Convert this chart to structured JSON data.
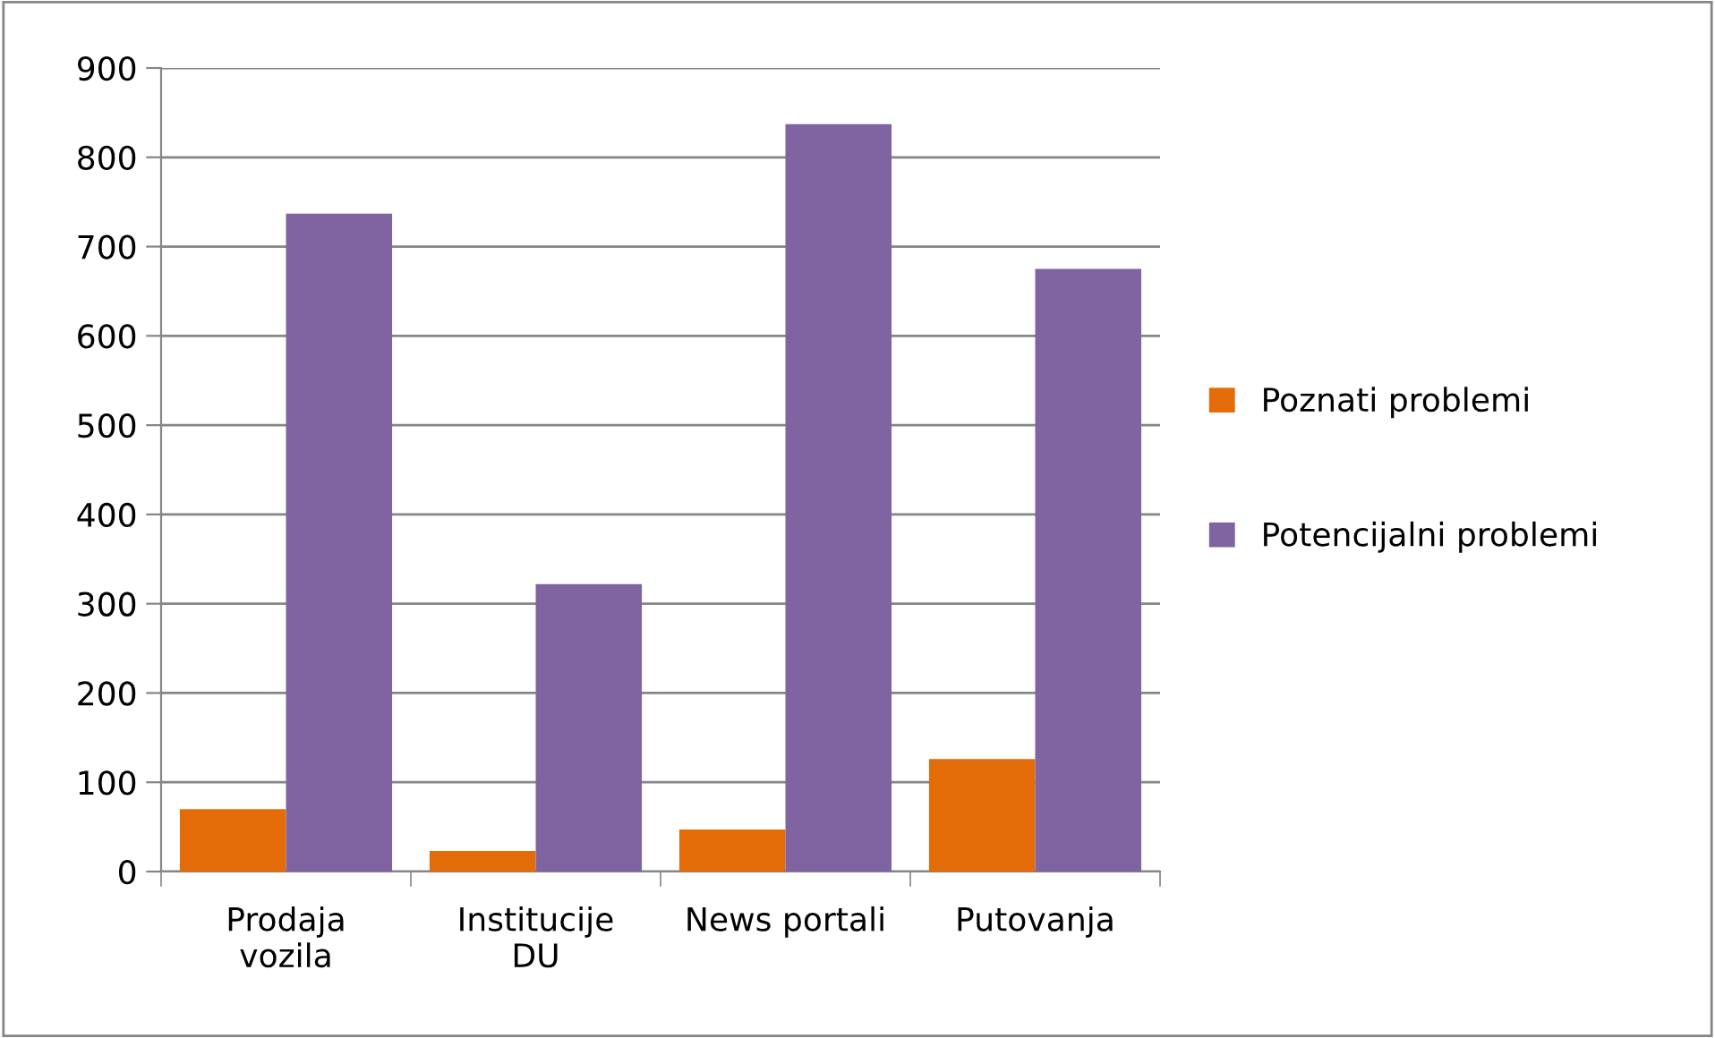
{
  "chart_data": {
    "type": "bar",
    "categories": [
      "Prodaja\nvozila",
      "Institucije\nDU",
      "News portali",
      "Putovanja"
    ],
    "series": [
      {
        "name": "Poznati problemi",
        "color": "#e36c09",
        "values": [
          70,
          23,
          47,
          126
        ]
      },
      {
        "name": "Potencijalni problemi",
        "color": "#8064a2",
        "values": [
          737,
          322,
          837,
          675
        ]
      }
    ],
    "ylim": [
      0,
      900
    ],
    "yticks": [
      0,
      100,
      200,
      300,
      400,
      500,
      600,
      700,
      800,
      900
    ],
    "grid": "y",
    "legend": "right"
  }
}
